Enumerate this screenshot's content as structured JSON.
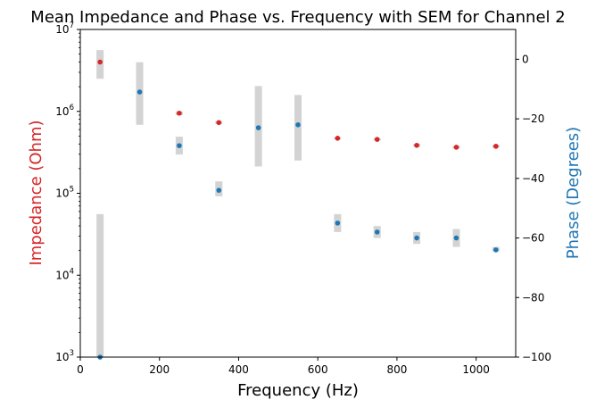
{
  "chart_data": {
    "type": "scatter",
    "title": "Mean Impedance and Phase vs. Frequency with SEM for Channel 2",
    "xlabel": "Frequency (Hz)",
    "ylabel_left": "Impedance (Ohm)",
    "ylabel_right": "Phase (Degrees)",
    "xlim": [
      0,
      1100
    ],
    "ylim_left": [
      1000,
      10000000
    ],
    "yscale_left": "log",
    "ylim_right": [
      -100,
      10
    ],
    "x_ticks": [
      0,
      200,
      400,
      600,
      800,
      1000
    ],
    "y_left_ticks": [
      {
        "base": "10",
        "exp": "3"
      },
      {
        "base": "10",
        "exp": "4"
      },
      {
        "base": "10",
        "exp": "5"
      },
      {
        "base": "10",
        "exp": "6"
      },
      {
        "base": "10",
        "exp": "7"
      }
    ],
    "y_right_ticks": [
      0,
      -20,
      -40,
      -60,
      -80,
      -100
    ],
    "grid": false,
    "error_bar_color": "#d3d3d3",
    "series": [
      {
        "axis": "left",
        "color": "#d62728",
        "x": [
          50,
          250,
          350,
          650,
          750,
          850,
          950,
          1050
        ],
        "y": [
          4000000,
          950000,
          730000,
          470000,
          455000,
          385000,
          365000,
          375000
        ],
        "sem_low": [
          2500000,
          900000,
          700000,
          455000,
          440000,
          370000,
          350000,
          360000
        ],
        "sem_high": [
          5600000,
          1000000,
          760000,
          485000,
          470000,
          400000,
          380000,
          390000
        ]
      },
      {
        "axis": "right",
        "color": "#1f77b4",
        "x": [
          50,
          150,
          250,
          350,
          450,
          550,
          650,
          750,
          850,
          950,
          1050
        ],
        "y": [
          -100,
          -11,
          -29,
          -44,
          -23,
          -22,
          -55,
          -58,
          -60,
          -60,
          -64
        ],
        "sem_low": [
          -100,
          -22,
          -32,
          -46,
          -36,
          -34,
          -58,
          -60,
          -62,
          -63,
          -64.5
        ],
        "sem_high": [
          -52,
          -1,
          -26,
          -41,
          -9,
          -12,
          -52,
          -56,
          -58,
          -57,
          -63
        ]
      }
    ]
  }
}
